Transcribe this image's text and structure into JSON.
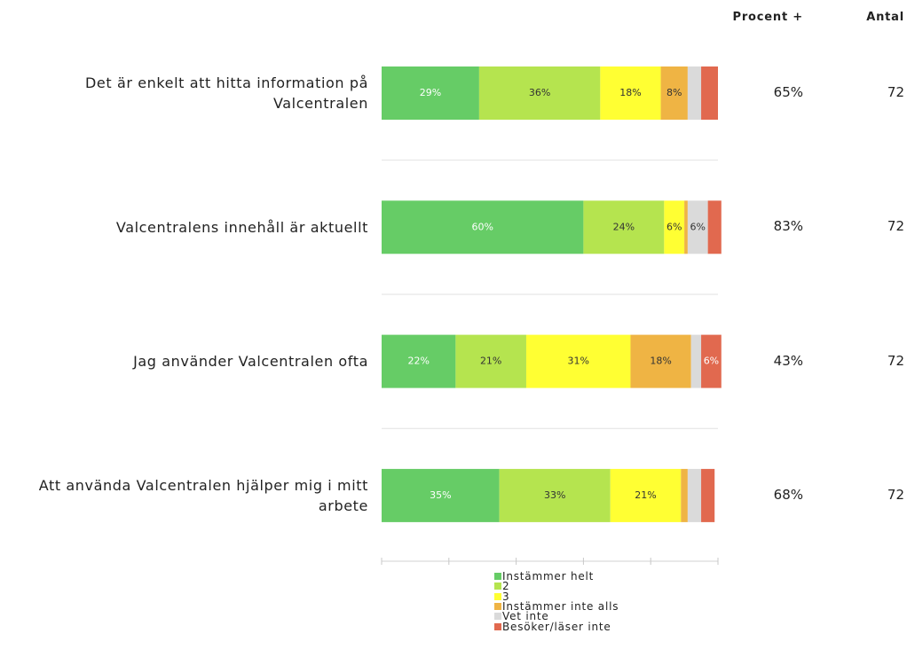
{
  "chart_data": {
    "type": "stacked_bar_horizontal",
    "categories": [
      "Det är enkelt att hitta information på Valcentralen",
      "Valcentralens innehåll är aktuellt",
      "Jag använder Valcentralen ofta",
      "Att använda Valcentralen hjälper mig i mitt arbete"
    ],
    "series": [
      {
        "name": "Instämmer helt",
        "color": "#66cc66",
        "values": [
          29,
          60,
          22,
          35
        ],
        "value_labels": [
          "29%",
          "60%",
          "22%",
          "35%"
        ]
      },
      {
        "name": "2",
        "color": "#b5e44f",
        "values": [
          36,
          24,
          21,
          33
        ],
        "value_labels": [
          "36%",
          "24%",
          "21%",
          "33%"
        ]
      },
      {
        "name": "3",
        "color": "#ffff33",
        "values": [
          18,
          6,
          31,
          21
        ],
        "value_labels": [
          "18%",
          "6%",
          "31%",
          "21%"
        ]
      },
      {
        "name": "Instämmer inte alls",
        "color": "#efb444",
        "values": [
          8,
          1,
          18,
          2
        ],
        "value_labels": [
          "8%",
          null,
          "18%",
          null
        ]
      },
      {
        "name": "Vet inte",
        "color": "#dadada",
        "values": [
          4,
          6,
          3,
          4
        ],
        "value_labels": [
          null,
          "6%",
          null,
          null
        ]
      },
      {
        "name": "Besöker/läser inte",
        "color": "#e1694f",
        "values": [
          5,
          4,
          6,
          4
        ],
        "value_labels": [
          null,
          null,
          "6%",
          null
        ]
      }
    ],
    "xlim": [
      0,
      100
    ],
    "xticks": [
      0,
      20,
      40,
      60,
      80,
      100
    ],
    "columns": [
      {
        "header": "Procent +",
        "values": [
          "65%",
          "83%",
          "43%",
          "68%"
        ]
      },
      {
        "header": "Antal",
        "values": [
          72,
          72,
          72,
          72
        ]
      }
    ]
  }
}
